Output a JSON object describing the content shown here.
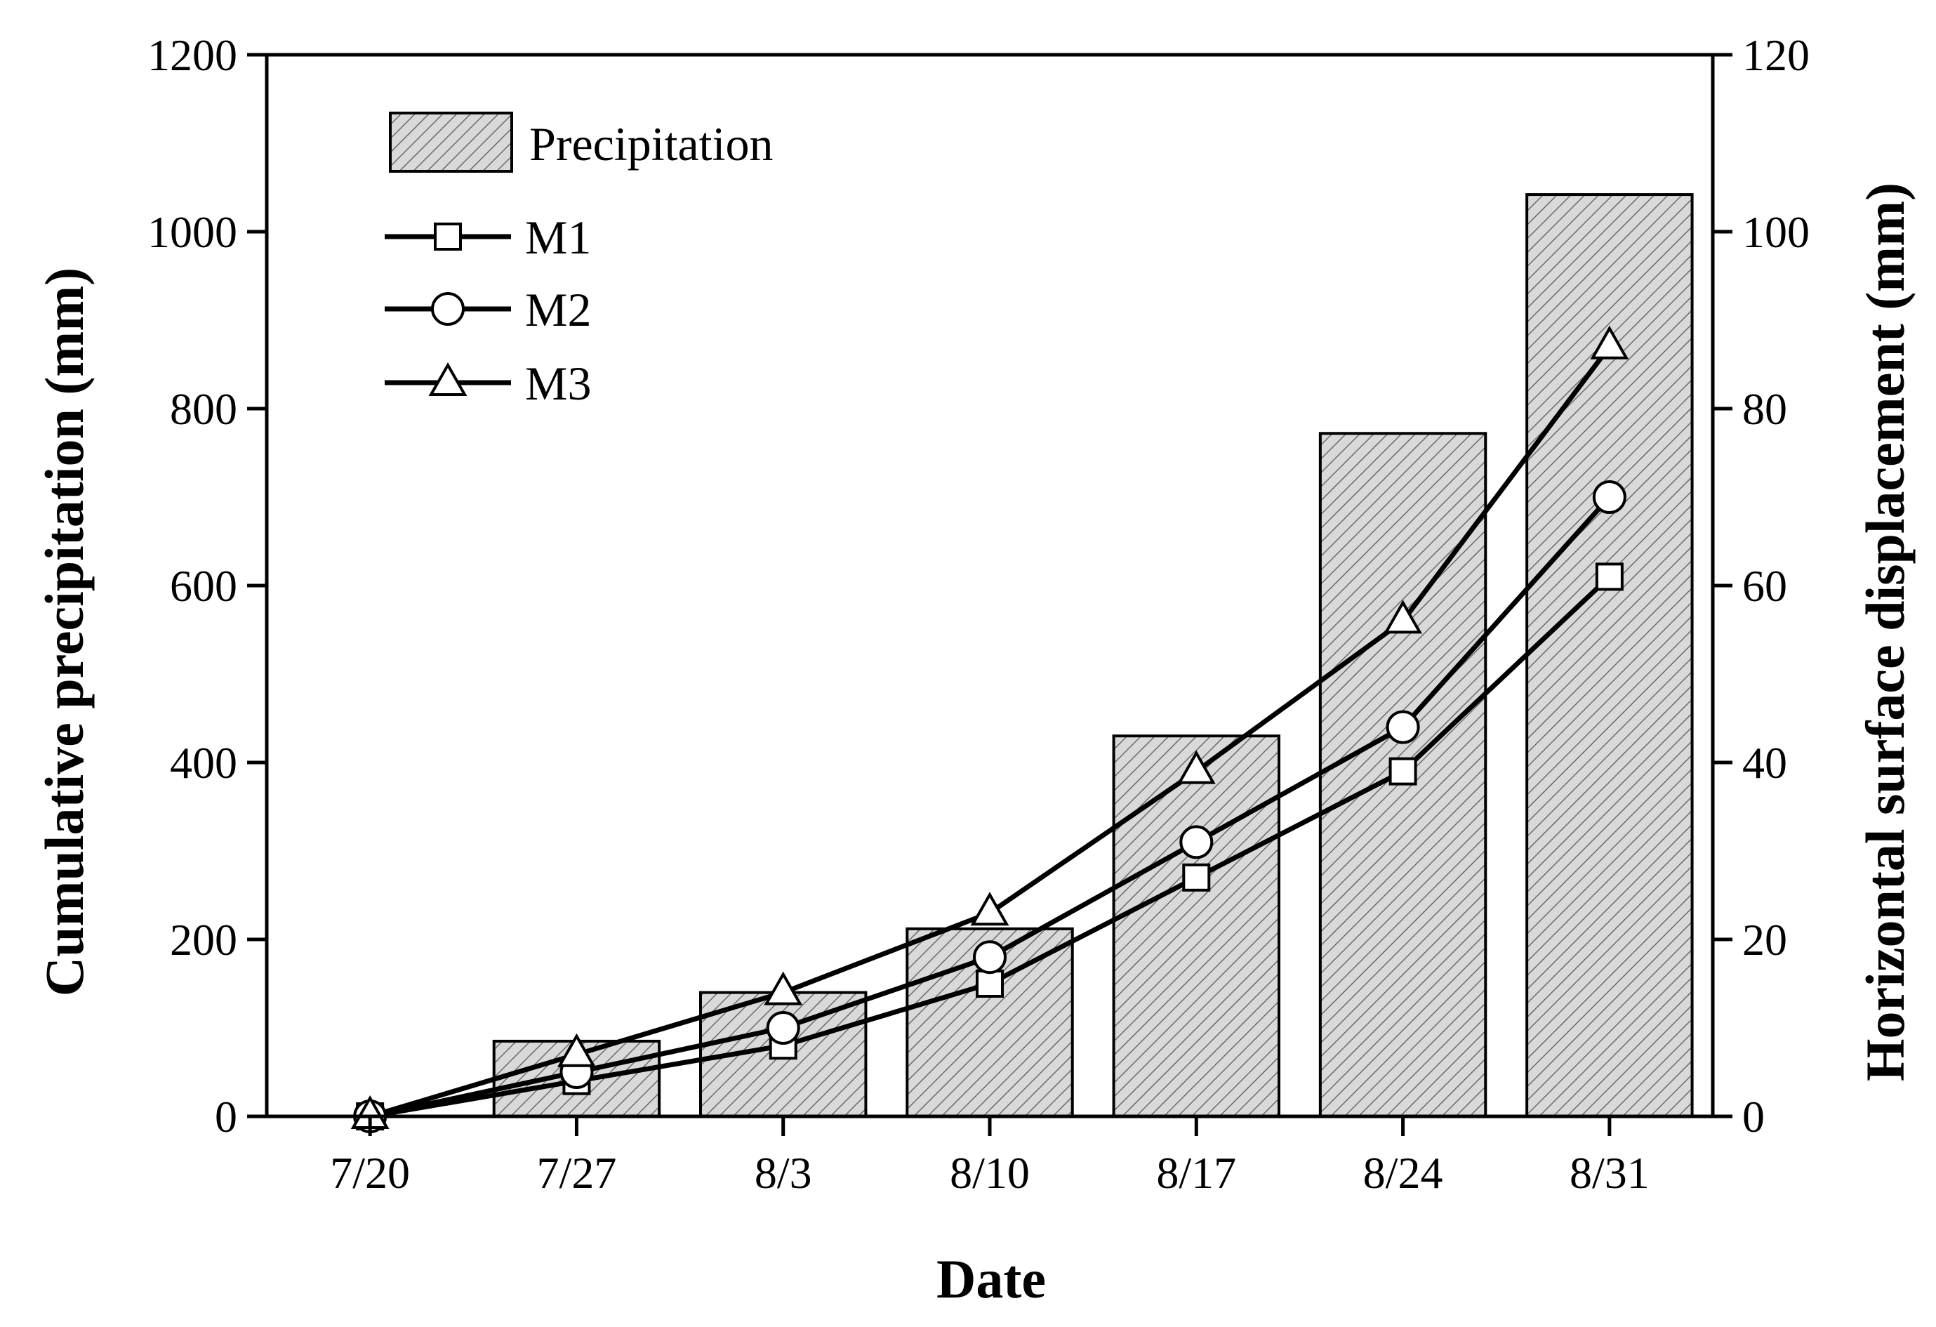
{
  "chart_data": {
    "type": "bar+line",
    "categories": [
      "7/20",
      "7/27",
      "8/3",
      "8/10",
      "8/17",
      "8/24",
      "8/31"
    ],
    "xlabel": "Date",
    "ylabel_left": "Cumulative precipitation (mm)",
    "ylabel_right": "Horizontal surface displacement (mm)",
    "ylim_left": [
      0,
      1200
    ],
    "ylim_right": [
      0,
      120
    ],
    "yticks_left": [
      "0",
      "200",
      "400",
      "600",
      "800",
      "1000",
      "1200"
    ],
    "yticks_right": [
      "0",
      "20",
      "40",
      "60",
      "80",
      "100",
      "120"
    ],
    "bars": {
      "name": "Precipitation",
      "axis": "left",
      "values": [
        0,
        85,
        140,
        212,
        430,
        772,
        1042
      ]
    },
    "series": [
      {
        "name": "M1",
        "axis": "right",
        "marker": "square",
        "values": [
          0,
          4,
          8,
          15,
          27,
          39,
          61
        ]
      },
      {
        "name": "M2",
        "axis": "right",
        "marker": "circle",
        "values": [
          0,
          5,
          10,
          18,
          31,
          44,
          70
        ]
      },
      {
        "name": "M3",
        "axis": "right",
        "marker": "triangle",
        "values": [
          0,
          7,
          14,
          23,
          39,
          56,
          87
        ]
      }
    ],
    "legend_position": "top-left",
    "grid": false
  }
}
